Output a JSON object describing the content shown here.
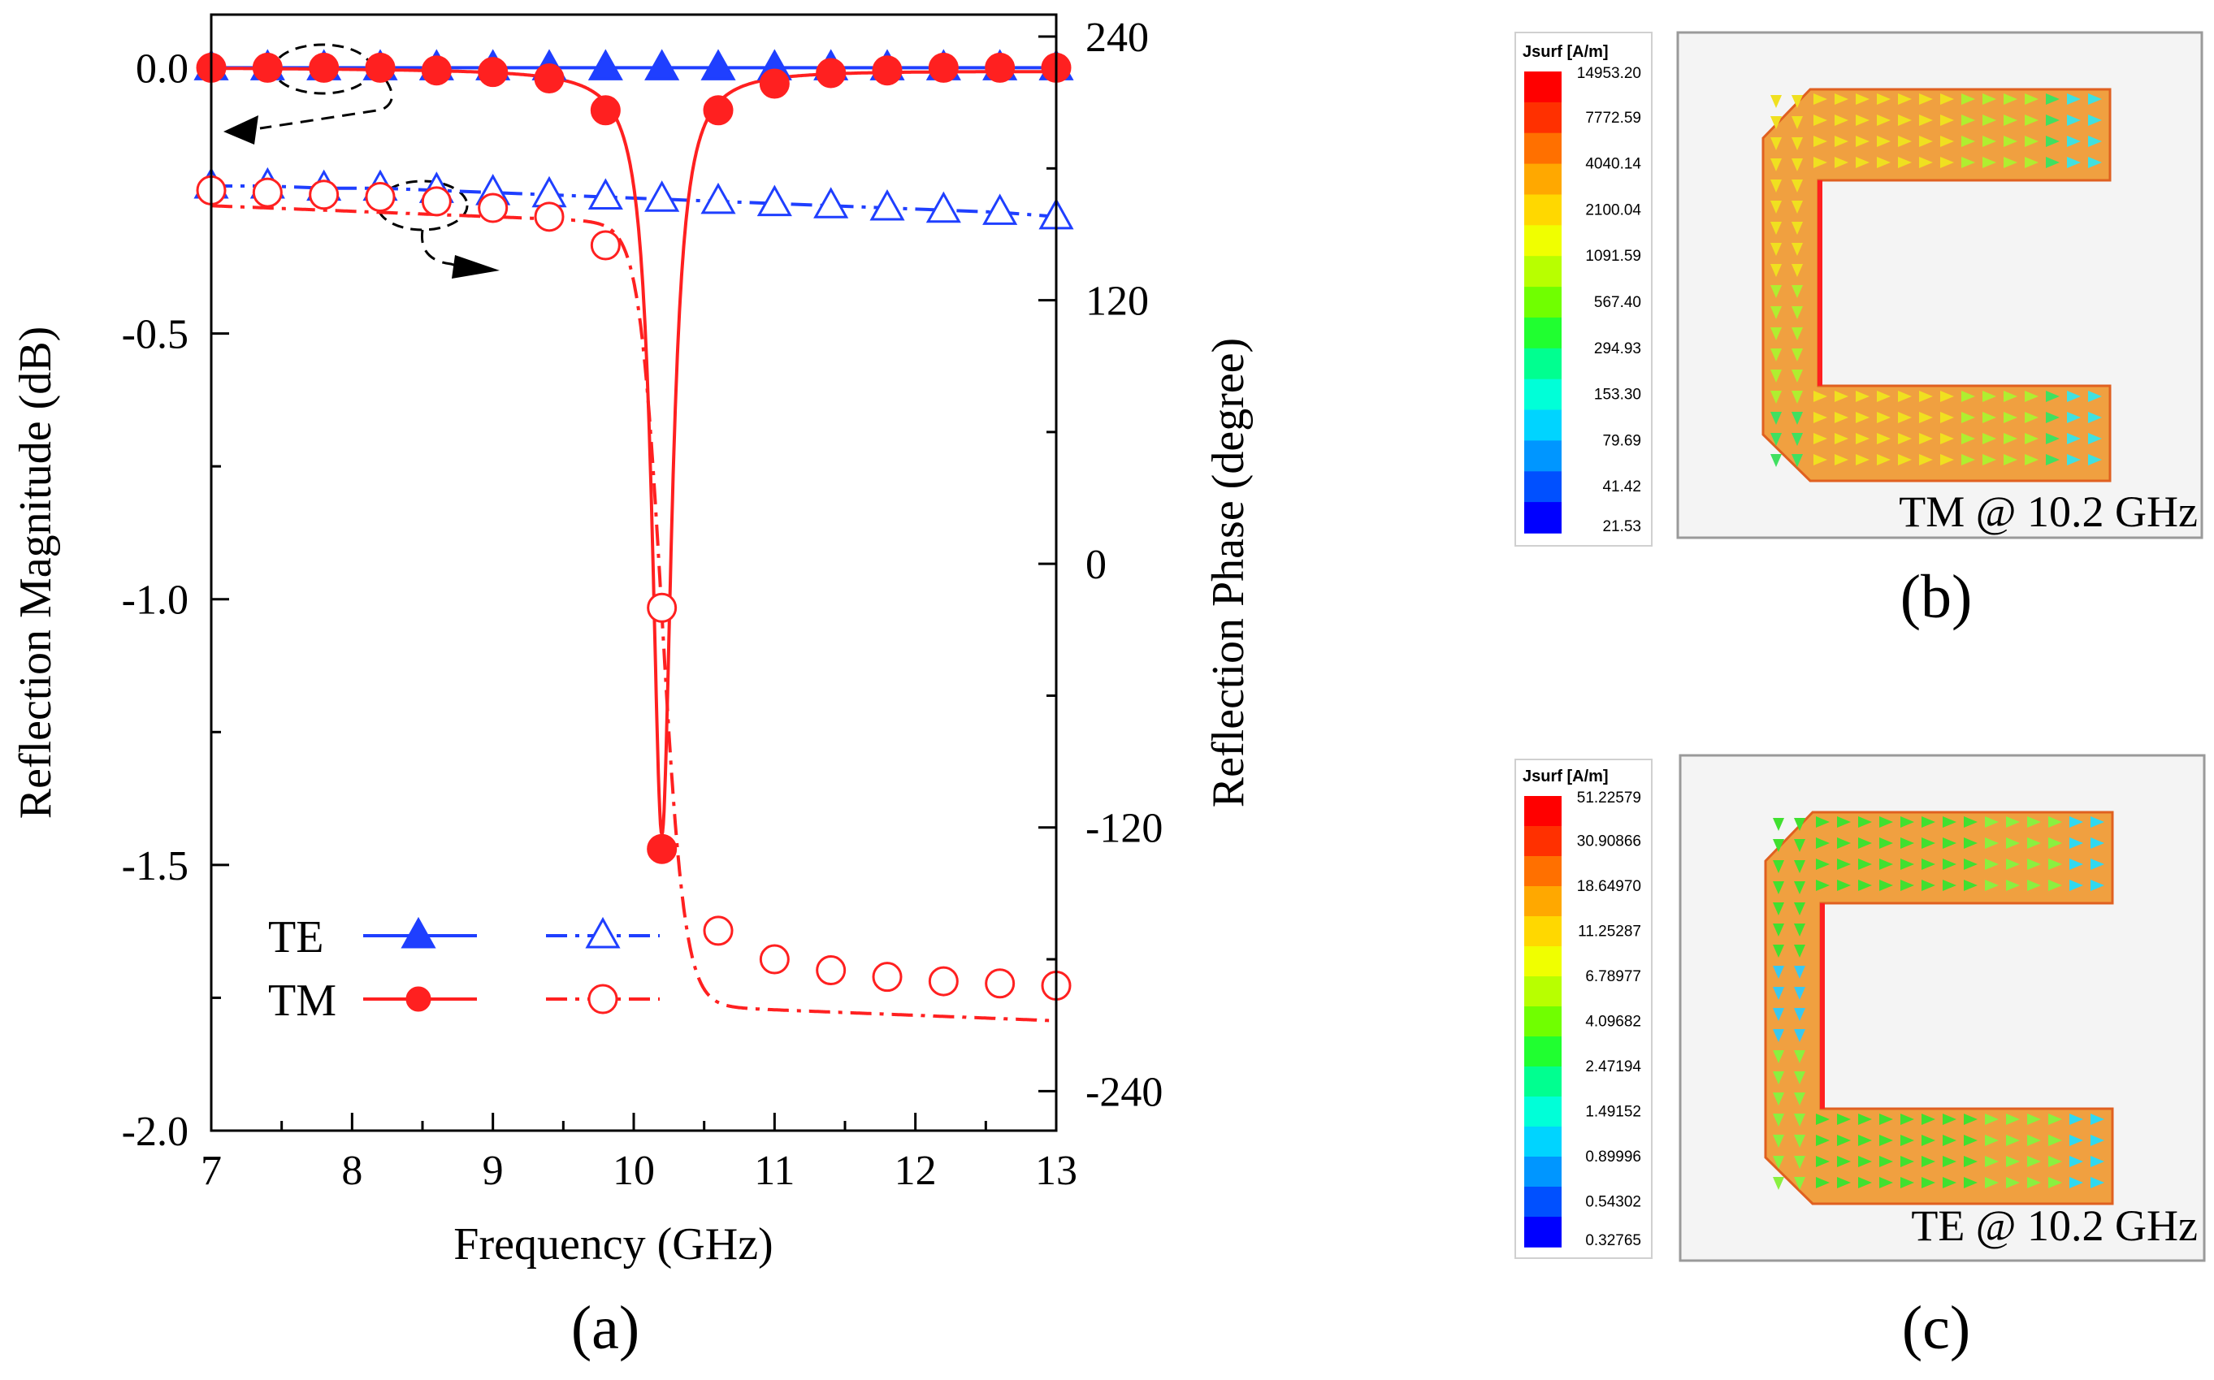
{
  "chart_data": [
    {
      "type": "line",
      "panel_label": "(a)",
      "xlabel": "Frequency (GHz)",
      "ylabel": "Reflection Magnitude (dB)",
      "y2label": "Reflection Phase (degree)",
      "xlim": [
        7,
        13
      ],
      "ylim": [
        -2.0,
        0.1
      ],
      "y2lim": [
        -258,
        250
      ],
      "xticks": [
        "7",
        "8",
        "9",
        "10",
        "11",
        "12",
        "13"
      ],
      "yticks": [
        "0.0",
        "-0.5",
        "-1.0",
        "-1.5",
        "-2.0"
      ],
      "y2ticks": [
        "240",
        "120",
        "0",
        "-120",
        "-240"
      ],
      "grid": false,
      "legend_position": "bottom-left",
      "legend": [
        {
          "label": "TE",
          "color": "#1f3fff",
          "marker": "triangle"
        },
        {
          "label": "TM",
          "color": "#ff2020",
          "marker": "circle"
        }
      ],
      "series": [
        {
          "axis": "magnitude",
          "mode": "TE",
          "color": "#1f3fff",
          "marker": "triangle-filled",
          "x": [
            7.0,
            7.4,
            7.8,
            8.2,
            8.6,
            9.0,
            9.4,
            9.8,
            10.2,
            10.6,
            11.0,
            11.4,
            11.8,
            12.2,
            12.6,
            13.0
          ],
          "y": [
            0,
            0,
            0,
            0,
            0,
            0,
            0,
            0,
            0,
            0,
            0,
            0,
            0,
            0,
            0,
            0
          ]
        },
        {
          "axis": "magnitude",
          "mode": "TM",
          "color": "#ff2020",
          "marker": "circle-filled",
          "x": [
            7.0,
            7.4,
            7.8,
            8.2,
            8.6,
            9.0,
            9.4,
            9.8,
            10.2,
            10.6,
            11.0,
            11.4,
            11.8,
            12.2,
            12.6,
            13.0
          ],
          "y": [
            0,
            0,
            0,
            0,
            -0.005,
            -0.008,
            -0.02,
            -0.08,
            -1.47,
            -0.08,
            -0.03,
            -0.01,
            -0.005,
            0,
            0,
            0
          ]
        },
        {
          "axis": "phase",
          "mode": "TE",
          "color": "#1f3fff",
          "marker": "triangle-open",
          "x": [
            7.0,
            7.4,
            7.8,
            8.2,
            8.6,
            9.0,
            9.4,
            9.8,
            10.2,
            10.6,
            11.0,
            11.4,
            11.8,
            12.2,
            12.6,
            13.0
          ],
          "y": [
            172,
            172,
            171,
            171,
            170,
            169,
            168,
            167,
            166,
            165,
            164,
            163,
            162,
            161,
            160,
            158
          ]
        },
        {
          "axis": "phase",
          "mode": "TM",
          "color": "#ff2020",
          "marker": "circle-open",
          "x": [
            7.0,
            7.4,
            7.8,
            8.2,
            8.6,
            9.0,
            9.4,
            9.8,
            10.2,
            10.6,
            11.0,
            11.4,
            11.8,
            12.2,
            12.6,
            13.0
          ],
          "y": [
            170,
            169,
            168,
            167,
            165,
            162,
            158,
            145,
            -20,
            -167,
            -180,
            -185,
            -188,
            -190,
            -191,
            -192
          ]
        }
      ]
    },
    {
      "type": "heatmap",
      "panel_label": "(b)",
      "caption": "TM @ 10.2 GHz",
      "colorbar_title": "Jsurf [A/m]",
      "colorbar_labels": [
        "14953.20",
        "7772.59",
        "4040.14",
        "2100.04",
        "1091.59",
        "567.40",
        "294.93",
        "153.30",
        "79.69",
        "41.42",
        "21.53"
      ]
    },
    {
      "type": "heatmap",
      "panel_label": "(c)",
      "caption": "TE @ 10.2 GHz",
      "colorbar_title": "Jsurf [A/m]",
      "colorbar_labels": [
        "51.22579",
        "30.90866",
        "18.64970",
        "11.25287",
        "6.78977",
        "4.09682",
        "2.47194",
        "1.49152",
        "0.89996",
        "0.54302",
        "0.32765"
      ]
    }
  ],
  "colors": {
    "te": "#1f3fff",
    "tm": "#ff2020",
    "colormap": [
      "#0000ff",
      "#0050ff",
      "#0096ff",
      "#00d4ff",
      "#00ffd8",
      "#00ff90",
      "#20ff30",
      "#70ff00",
      "#b8ff00",
      "#f0ff00",
      "#ffd800",
      "#ffa800",
      "#ff7000",
      "#ff3000",
      "#ff0000"
    ]
  }
}
